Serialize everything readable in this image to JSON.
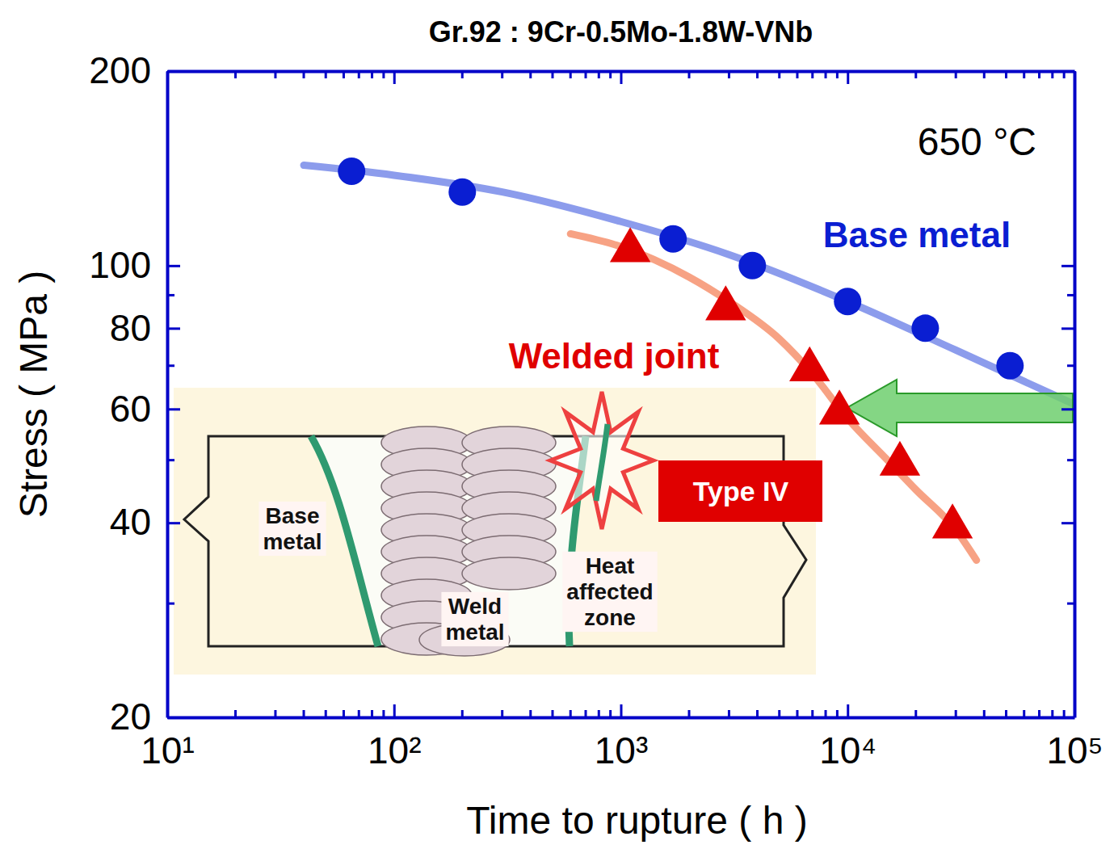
{
  "chart_data": {
    "type": "scatter",
    "title": "Gr.92 : 9Cr-0.5Mo-1.8W-VNb",
    "x_label": "Time to rupture  ( h )",
    "y_label": "Stress  ( MPa )",
    "log": true,
    "xlim": [
      10,
      100000
    ],
    "ylim": [
      20,
      200
    ],
    "xticks": [
      {
        "value": 10,
        "label": "10¹"
      },
      {
        "value": 100,
        "label": "10²"
      },
      {
        "value": 1000,
        "label": "10³"
      },
      {
        "value": 10000,
        "label": "10⁴"
      },
      {
        "value": 100000,
        "label": "10⁵"
      }
    ],
    "yticks": [
      20,
      40,
      60,
      80,
      100,
      200
    ],
    "series": [
      {
        "name": "Base metal",
        "color": "#0a1ed2",
        "marker": "circle",
        "x": [
          65,
          200,
          1700,
          3800,
          10000,
          22000,
          52000
        ],
        "values": [
          140,
          130,
          110,
          100,
          88,
          80,
          70
        ],
        "fit": {
          "color": "#8c9cec",
          "x": [
            40,
            100,
            300,
            1000,
            3000,
            10000,
            30000,
            100000
          ],
          "values": [
            143,
            138,
            130,
            117,
            104,
            88,
            74,
            61
          ]
        }
      },
      {
        "name": "Welded joint",
        "color": "#e00000",
        "marker": "triangle",
        "x": [
          1100,
          2900,
          6800,
          9200,
          17000,
          29000
        ],
        "values": [
          107,
          87,
          70,
          60,
          50,
          40
        ],
        "fit": {
          "color": "#f7a284",
          "x": [
            600,
            1000,
            2000,
            3000,
            5000,
            7000,
            10000,
            15000,
            20000,
            30000,
            37000
          ],
          "values": [
            112,
            107,
            96,
            88,
            77,
            68,
            58,
            50,
            45,
            39,
            35
          ]
        }
      }
    ],
    "annotations": {
      "temperature": "650 °C",
      "inset": [
        "Base metal",
        "Weld metal",
        "Heat affected zone",
        "Type IV"
      ]
    }
  }
}
